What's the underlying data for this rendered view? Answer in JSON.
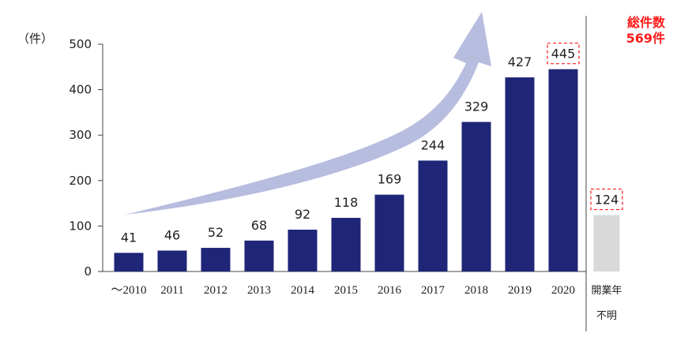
{
  "chart_data": {
    "type": "bar",
    "categories": [
      "～2010",
      "2011",
      "2012",
      "2013",
      "2014",
      "2015",
      "2016",
      "2017",
      "2018",
      "2019",
      "2020"
    ],
    "values": [
      41,
      46,
      52,
      68,
      92,
      118,
      169,
      244,
      329,
      427,
      445
    ],
    "unknown_category": {
      "label_line1": "開業年",
      "label_line2": "不明",
      "value": 124
    },
    "y_unit": "（件）",
    "ylim": [
      0,
      500
    ],
    "y_ticks": [
      0,
      100,
      200,
      300,
      400,
      500
    ],
    "total_label_line1": "総件数",
    "total_label_line2": "569件",
    "highlighted_values": [
      445,
      124
    ],
    "grid": false,
    "colors": {
      "bar": "#1f2577",
      "unknown_bar": "#d9d9d9",
      "arrow": "#b7bddf",
      "total_text": "#ff1a1a",
      "highlight_box": "#ff1a1a"
    }
  }
}
